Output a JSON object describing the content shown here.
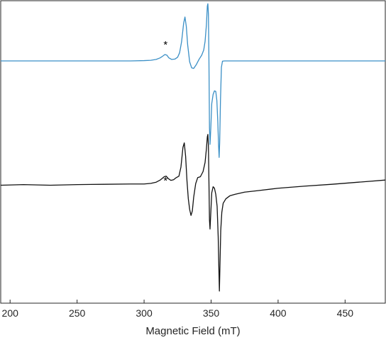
{
  "chart_data": {
    "type": "line",
    "title": "",
    "xlabel": "Magnetic Field (mT)",
    "ylabel": "",
    "xlim": [
      193,
      480
    ],
    "ylim": [
      0,
      100
    ],
    "xticks": [
      200,
      250,
      300,
      350,
      400,
      450
    ],
    "xtick_labels": [
      "200",
      "250",
      "300",
      "350",
      "400",
      "450"
    ],
    "grid": false,
    "legend": "none",
    "annotations": [
      {
        "text": "*",
        "x": 316,
        "y": 85.5,
        "series": "simulated"
      },
      {
        "text": "*",
        "x": 316,
        "y": 40.5,
        "series": "experimental"
      }
    ],
    "series": [
      {
        "key": "simulated",
        "color": "#3a8fc6",
        "points": [
          [
            193,
            80.1
          ],
          [
            240,
            80.1
          ],
          [
            290,
            80.1
          ],
          [
            300,
            80.2
          ],
          [
            305,
            80.3
          ],
          [
            309,
            80.6
          ],
          [
            312,
            81.1
          ],
          [
            314,
            81.7
          ],
          [
            315.5,
            82.2
          ],
          [
            317,
            82.0
          ],
          [
            318.5,
            81.1
          ],
          [
            320.5,
            80.6
          ],
          [
            323,
            80.7
          ],
          [
            325,
            81.3
          ],
          [
            326.5,
            82.8
          ],
          [
            328,
            86.5
          ],
          [
            329.5,
            92.5
          ],
          [
            330.5,
            94.6
          ],
          [
            331.5,
            91.5
          ],
          [
            332.5,
            85.5
          ],
          [
            334,
            79.8
          ],
          [
            335.5,
            77.8
          ],
          [
            337,
            77.6
          ],
          [
            339,
            78.9
          ],
          [
            341,
            80.6
          ],
          [
            343,
            82.0
          ],
          [
            344.5,
            83.7
          ],
          [
            345.5,
            86.5
          ],
          [
            346.5,
            92.0
          ],
          [
            347.2,
            98.2
          ],
          [
            347.6,
            99.0
          ],
          [
            348,
            95.5
          ],
          [
            348.4,
            80.0
          ],
          [
            348.8,
            58.0
          ],
          [
            349.2,
            52.5
          ],
          [
            349.8,
            58.0
          ],
          [
            350.5,
            66.0
          ],
          [
            351.5,
            69.0
          ],
          [
            352.5,
            70.2
          ],
          [
            353.5,
            70.0
          ],
          [
            354.3,
            67.0
          ],
          [
            355,
            60.0
          ],
          [
            355.6,
            52.0
          ],
          [
            356,
            48.2
          ],
          [
            356.4,
            53.0
          ],
          [
            357,
            67.0
          ],
          [
            357.7,
            78.0
          ],
          [
            358.5,
            80.0
          ],
          [
            360,
            80.1
          ],
          [
            400,
            80.1
          ],
          [
            480,
            80.1
          ]
        ]
      },
      {
        "key": "experimental",
        "color": "#111111",
        "points": [
          [
            193,
            39.0
          ],
          [
            210,
            39.2
          ],
          [
            230,
            39.0
          ],
          [
            250,
            39.2
          ],
          [
            270,
            39.3
          ],
          [
            290,
            39.4
          ],
          [
            300,
            39.4
          ],
          [
            305,
            39.6
          ],
          [
            309,
            40.0
          ],
          [
            312,
            40.7
          ],
          [
            315,
            41.8
          ],
          [
            316.5,
            42.0
          ],
          [
            318,
            41.2
          ],
          [
            320,
            40.6
          ],
          [
            322,
            40.8
          ],
          [
            324,
            41.5
          ],
          [
            326,
            42.0
          ],
          [
            327.5,
            45.0
          ],
          [
            329,
            51.5
          ],
          [
            330,
            53.0
          ],
          [
            331,
            48.5
          ],
          [
            332,
            40.5
          ],
          [
            333,
            34.5
          ],
          [
            334,
            31.0
          ],
          [
            335,
            29.0
          ],
          [
            336,
            30.5
          ],
          [
            337,
            35.0
          ],
          [
            338.5,
            39.5
          ],
          [
            340,
            41.5
          ],
          [
            342,
            41.8
          ],
          [
            344,
            43.5
          ],
          [
            345.5,
            46.5
          ],
          [
            346.5,
            51.0
          ],
          [
            347.2,
            55.0
          ],
          [
            347.6,
            55.8
          ],
          [
            348,
            52.0
          ],
          [
            348.4,
            40.0
          ],
          [
            348.8,
            27.5
          ],
          [
            349.2,
            24.5
          ],
          [
            349.8,
            30.0
          ],
          [
            350.5,
            36.5
          ],
          [
            351.5,
            38.5
          ],
          [
            352.5,
            38.0
          ],
          [
            353.5,
            36.0
          ],
          [
            354.5,
            32.0
          ],
          [
            355.3,
            22.0
          ],
          [
            355.8,
            11.5
          ],
          [
            356.2,
            4.0
          ],
          [
            356.6,
            12.0
          ],
          [
            357.2,
            24.0
          ],
          [
            358,
            30.0
          ],
          [
            359,
            33.0
          ],
          [
            361,
            34.5
          ],
          [
            364,
            35.5
          ],
          [
            368,
            36.0
          ],
          [
            375,
            36.7
          ],
          [
            385,
            37.2
          ],
          [
            400,
            38.0
          ],
          [
            420,
            38.7
          ],
          [
            440,
            39.3
          ],
          [
            460,
            40.0
          ],
          [
            480,
            40.7
          ]
        ]
      }
    ]
  }
}
